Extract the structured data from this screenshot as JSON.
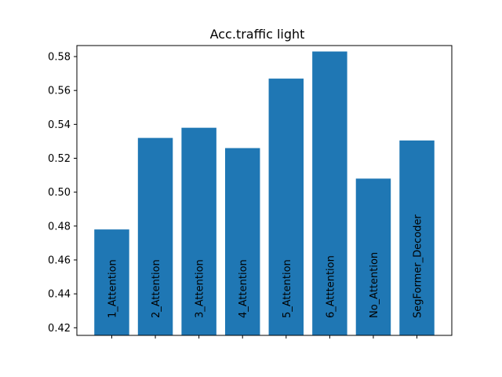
{
  "chart_data": {
    "type": "bar",
    "title": "Acc.traffic light",
    "xlabel": "",
    "ylabel": "",
    "categories": [
      "1_Attention",
      "2_Attention",
      "3_Attention",
      "4_Attention",
      "5_Attention",
      "6_Atttention",
      "No_Attention",
      "SegFormer_Decoder"
    ],
    "values": [
      0.478,
      0.532,
      0.538,
      0.526,
      0.567,
      0.583,
      0.508,
      0.5305
    ],
    "ylim": [
      0.4155,
      0.5865
    ],
    "yticks": [
      0.42,
      0.44,
      0.46,
      0.48,
      0.5,
      0.52,
      0.54,
      0.56,
      0.58
    ],
    "ytick_labels": [
      "0.42",
      "0.44",
      "0.46",
      "0.48",
      "0.50",
      "0.52",
      "0.54",
      "0.56",
      "0.58"
    ],
    "bar_color": "#1f77b4",
    "category_labels_position": "inside bars, rotated vertical",
    "grid": false,
    "legend": "none"
  }
}
